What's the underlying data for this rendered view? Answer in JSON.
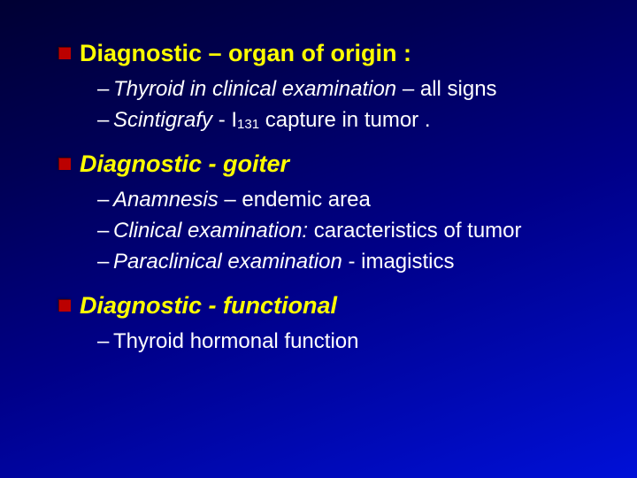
{
  "colors": {
    "background_gradient": [
      "#000033",
      "#000055",
      "#000088",
      "#0010d8"
    ],
    "heading_color": "#ffff00",
    "text_color": "#ffffff",
    "bullet_color": "#bb0000"
  },
  "typography": {
    "font_family": "Arial",
    "heading_fontsize_pt": 20,
    "heading_fontweight": "bold",
    "body_fontsize_pt": 18
  },
  "sections": [
    {
      "heading": "Diagnostic – organ of origin :",
      "heading_italic": false,
      "items": [
        {
          "prefix": "–",
          "parts": [
            {
              "text": "Thyroid in clinical examination",
              "italic": true
            },
            {
              "text": " – all signs",
              "italic": false
            }
          ]
        },
        {
          "prefix": "–",
          "parts": [
            {
              "text": "Scintigrafy",
              "italic": true
            },
            {
              "text": "  - I",
              "italic": false
            },
            {
              "text": "131",
              "sub": true
            },
            {
              "text": "  capture in tumor .",
              "italic": false
            }
          ]
        }
      ]
    },
    {
      "heading": "Diagnostic - goiter",
      "heading_italic": true,
      "items": [
        {
          "prefix": "–",
          "parts": [
            {
              "text": "Anamnesis",
              "italic": true
            },
            {
              "text": " – endemic area",
              "italic": false
            }
          ]
        },
        {
          "prefix": "–",
          "parts": [
            {
              "text": "Clinical examination:",
              "italic": true
            },
            {
              "text": " caracteristics of tumor",
              "italic": false
            }
          ]
        },
        {
          "prefix": "–",
          "parts": [
            {
              "text": "Paraclinical examination ",
              "italic": true
            },
            {
              "text": " - imagistics",
              "italic": false
            }
          ]
        }
      ]
    },
    {
      "heading": "Diagnostic - functional",
      "heading_italic": true,
      "items": [
        {
          "prefix": "–",
          "parts": [
            {
              "text": "Thyroid hormonal function",
              "italic": false
            }
          ]
        }
      ]
    }
  ]
}
